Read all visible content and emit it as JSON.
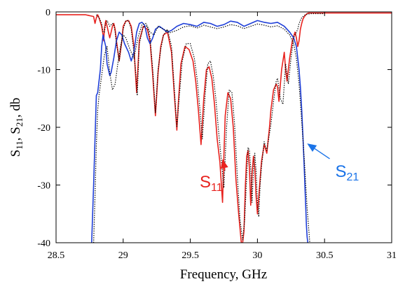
{
  "chart_data": {
    "type": "line",
    "xlabel": "Frequency, GHz",
    "ylabel": {
      "main": "S",
      "sub1": "11",
      "sep": ", S",
      "sub2": "21",
      "unit": ", db"
    },
    "xlim": [
      28.5,
      31
    ],
    "ylim": [
      -40,
      0
    ],
    "xticks": [
      28.5,
      29,
      29.5,
      30,
      30.5,
      31
    ],
    "xtick_labels": [
      "28.5",
      "29",
      "29.5",
      "30",
      "30.5",
      "31"
    ],
    "yticks": [
      0,
      -10,
      -20,
      -30,
      -40
    ],
    "ytick_labels": [
      "0",
      "-10",
      "-20",
      "-30",
      "-40"
    ],
    "grid": false,
    "colors": {
      "s11": "#e8231f",
      "s21": "#1f3fd8",
      "measured": "#000000",
      "annotation_s21": "#1a73e8"
    },
    "annotations": [
      {
        "main": "S",
        "sub": "11",
        "color": "#e8231f",
        "target": [
          29.74,
          -25.5
        ],
        "label_at": [
          29.57,
          -30.4
        ]
      },
      {
        "main": "S",
        "sub": "21",
        "color": "#1a73e8",
        "target": [
          30.37,
          -22.8
        ],
        "label_at": [
          30.58,
          -28.6
        ]
      }
    ],
    "series": [
      {
        "key": "s11_sim",
        "style": "solid",
        "color": "#e8231f",
        "x": [
          28.5,
          28.72,
          28.78,
          28.79,
          28.8,
          28.81,
          28.82,
          28.84,
          28.85,
          28.855,
          28.86,
          28.87,
          28.88,
          28.9,
          28.91,
          28.92,
          28.93,
          28.94,
          28.95,
          28.97,
          28.99,
          29.0,
          29.02,
          29.04,
          29.06,
          29.08,
          29.09,
          29.1,
          29.12,
          29.15,
          29.18,
          29.2,
          29.22,
          29.24,
          29.26,
          29.28,
          29.3,
          29.33,
          29.36,
          29.38,
          29.4,
          29.41,
          29.43,
          29.46,
          29.49,
          29.52,
          29.54,
          29.56,
          29.58,
          29.6,
          29.62,
          29.64,
          29.66,
          29.68,
          29.7,
          29.72,
          29.74,
          29.75,
          29.76,
          29.78,
          29.8,
          29.82,
          29.84,
          29.86,
          29.88,
          29.89,
          29.9,
          29.91,
          29.92,
          29.93,
          29.94,
          29.95,
          29.96,
          29.97,
          29.98,
          29.99,
          30.0,
          30.01,
          30.02,
          30.03,
          30.05,
          30.07,
          30.09,
          30.1,
          30.12,
          30.14,
          30.15,
          30.16,
          30.18,
          30.2,
          30.21,
          30.22,
          30.24,
          30.26,
          30.28,
          30.29,
          30.3,
          30.31,
          30.32,
          30.33,
          30.34,
          30.35,
          30.36,
          30.37,
          30.38,
          30.4,
          30.44,
          30.5,
          31.0
        ],
        "y": [
          -0.5,
          -0.5,
          -0.8,
          -2.0,
          -1.0,
          -0.5,
          -1.0,
          -2.5,
          -4.0,
          -5.0,
          -3.0,
          -1.5,
          -2.5,
          -4.5,
          -3.5,
          -2.5,
          -2.0,
          -3.0,
          -5.0,
          -8.5,
          -5.0,
          -2.5,
          -1.6,
          -1.5,
          -2.5,
          -6.0,
          -10.0,
          -14.0,
          -5.0,
          -2.5,
          -3.0,
          -5.0,
          -11.0,
          -18.0,
          -10.5,
          -6.0,
          -4.0,
          -3.5,
          -7.0,
          -14.0,
          -20.5,
          -16.0,
          -9.0,
          -6.0,
          -6.5,
          -8.5,
          -12.0,
          -17.0,
          -23.0,
          -15.0,
          -10.0,
          -9.5,
          -11.5,
          -16.0,
          -22.0,
          -26.0,
          -33.0,
          -25.0,
          -18.0,
          -14.0,
          -15.0,
          -20.0,
          -29.0,
          -35.0,
          -40.0,
          -40.0,
          -38.0,
          -30.0,
          -25.0,
          -24.0,
          -27.0,
          -33.5,
          -28.0,
          -25.0,
          -27.0,
          -32.0,
          -35.0,
          -32.0,
          -29.0,
          -26.0,
          -23.0,
          -24.5,
          -20.0,
          -17.0,
          -13.5,
          -12.5,
          -13.0,
          -15.5,
          -10.0,
          -7.0,
          -10.0,
          -12.0,
          -8.0,
          -5.0,
          -3.5,
          -4.5,
          -6.0,
          -5.0,
          -3.0,
          -2.0,
          -1.2,
          -0.8,
          -0.5,
          -0.3,
          -0.2,
          -0.2,
          -0.2,
          -0.2,
          -0.2
        ]
      },
      {
        "key": "s21_sim",
        "style": "solid",
        "color": "#1f3fd8",
        "x": [
          28.765,
          28.78,
          28.79,
          28.8,
          28.81,
          28.83,
          28.84,
          28.85,
          28.87,
          28.88,
          28.9,
          28.91,
          28.93,
          28.95,
          28.97,
          28.99,
          29.01,
          29.04,
          29.06,
          29.08,
          29.1,
          29.12,
          29.14,
          29.16,
          29.18,
          29.2,
          29.22,
          29.24,
          29.27,
          29.3,
          29.33,
          29.36,
          29.4,
          29.45,
          29.5,
          29.55,
          29.6,
          29.65,
          29.7,
          29.75,
          29.8,
          29.85,
          29.9,
          29.95,
          30.0,
          30.05,
          30.1,
          30.15,
          30.2,
          30.24,
          30.27,
          30.29,
          30.3,
          30.31,
          30.32,
          30.33,
          30.34,
          30.35,
          30.355,
          30.36,
          30.365,
          30.37,
          30.375
        ],
        "y": [
          -40.0,
          -30.0,
          -22.0,
          -14.5,
          -14.0,
          -10.0,
          -6.0,
          -4.0,
          -6.0,
          -9.0,
          -11.0,
          -10.5,
          -8.0,
          -5.0,
          -3.5,
          -4.0,
          -5.5,
          -7.0,
          -8.5,
          -7.0,
          -3.5,
          -2.0,
          -1.8,
          -2.3,
          -4.5,
          -5.5,
          -4.5,
          -3.0,
          -2.5,
          -3.0,
          -3.5,
          -3.2,
          -2.5,
          -2.0,
          -2.2,
          -2.5,
          -1.8,
          -2.0,
          -2.5,
          -2.2,
          -1.6,
          -1.8,
          -2.5,
          -2.0,
          -1.5,
          -1.8,
          -2.0,
          -1.8,
          -2.5,
          -3.5,
          -4.5,
          -6.0,
          -8.0,
          -10.0,
          -13.0,
          -17.0,
          -22.0,
          -28.0,
          -31.0,
          -34.0,
          -37.0,
          -39.0,
          -40.0
        ]
      },
      {
        "key": "s11_meas",
        "style": "dotted",
        "color": "#000000",
        "x": [
          28.8,
          28.82,
          28.84,
          28.85,
          28.86,
          28.87,
          28.88,
          28.9,
          28.92,
          28.93,
          28.94,
          28.95,
          28.97,
          29.0,
          29.02,
          29.04,
          29.06,
          29.08,
          29.095,
          29.105,
          29.12,
          29.15,
          29.18,
          29.2,
          29.22,
          29.24,
          29.26,
          29.28,
          29.3,
          29.33,
          29.36,
          29.38,
          29.4,
          29.42,
          29.44,
          29.47,
          29.5,
          29.53,
          29.55,
          29.57,
          29.59,
          29.61,
          29.63,
          29.65,
          29.67,
          29.69,
          29.71,
          29.73,
          29.75,
          29.77,
          29.79,
          29.81,
          29.83,
          29.85,
          29.87,
          29.89,
          29.905,
          29.92,
          29.93,
          29.94,
          29.95,
          29.96,
          29.97,
          29.98,
          29.99,
          30.0,
          30.01,
          30.02,
          30.03,
          30.05,
          30.07,
          30.1,
          30.12,
          30.14,
          30.15,
          30.17,
          30.19,
          30.21,
          30.23,
          30.25,
          30.27,
          30.29,
          30.3,
          30.31,
          30.33,
          30.35,
          30.37,
          30.4,
          30.5
        ],
        "y": [
          -0.5,
          -1.0,
          -2.0,
          -3.5,
          -3.5,
          -2.0,
          -1.5,
          -2.5,
          -2.0,
          -2.2,
          -3.5,
          -5.5,
          -8.5,
          -3.0,
          -1.5,
          -1.5,
          -3.0,
          -7.0,
          -11.0,
          -14.5,
          -5.5,
          -2.5,
          -2.5,
          -4.5,
          -10.0,
          -17.5,
          -10.0,
          -6.5,
          -4.0,
          -3.0,
          -6.0,
          -13.0,
          -20.0,
          -14.0,
          -8.5,
          -5.5,
          -5.5,
          -8.0,
          -11.5,
          -16.5,
          -22.0,
          -14.5,
          -9.0,
          -8.5,
          -11.0,
          -15.0,
          -20.5,
          -25.5,
          -30.5,
          -20.0,
          -13.5,
          -14.0,
          -19.5,
          -28.5,
          -36.0,
          -39.5,
          -36.0,
          -28.5,
          -23.5,
          -24.0,
          -27.0,
          -33.0,
          -27.5,
          -24.5,
          -27.5,
          -33.0,
          -35.5,
          -30.0,
          -27.0,
          -22.5,
          -24.0,
          -19.5,
          -15.5,
          -12.0,
          -11.5,
          -15.0,
          -16.0,
          -9.0,
          -12.5,
          -8.0,
          -4.5,
          -3.5,
          -3.0,
          -2.0,
          -1.0,
          -0.6,
          -0.4,
          -0.3,
          -0.3
        ]
      },
      {
        "key": "s21_meas",
        "style": "dotted",
        "color": "#000000",
        "x": [
          28.78,
          28.79,
          28.8,
          28.81,
          28.82,
          28.84,
          28.86,
          28.88,
          28.9,
          28.92,
          28.94,
          28.96,
          28.98,
          29.0,
          29.02,
          29.05,
          29.08,
          29.11,
          29.14,
          29.17,
          29.2,
          29.23,
          29.26,
          29.3,
          29.35,
          29.4,
          29.45,
          29.5,
          29.55,
          29.6,
          29.65,
          29.7,
          29.75,
          29.8,
          29.85,
          29.9,
          29.95,
          30.0,
          30.05,
          30.1,
          30.15,
          30.2,
          30.24,
          30.27,
          30.29,
          30.31,
          30.33,
          30.35,
          30.37,
          30.39
        ],
        "y": [
          -40.0,
          -32.0,
          -23.0,
          -17.0,
          -14.5,
          -11.0,
          -7.5,
          -6.0,
          -10.5,
          -13.5,
          -12.5,
          -9.0,
          -6.0,
          -4.0,
          -4.5,
          -6.5,
          -8.0,
          -4.5,
          -2.2,
          -2.0,
          -3.5,
          -4.0,
          -2.5,
          -3.0,
          -3.6,
          -3.2,
          -2.6,
          -2.4,
          -2.8,
          -2.3,
          -2.6,
          -2.9,
          -2.6,
          -2.2,
          -2.4,
          -2.9,
          -2.5,
          -2.1,
          -2.3,
          -2.6,
          -2.4,
          -3.0,
          -4.0,
          -5.5,
          -8.0,
          -12.5,
          -19.0,
          -26.0,
          -34.0,
          -40.0
        ]
      }
    ]
  }
}
